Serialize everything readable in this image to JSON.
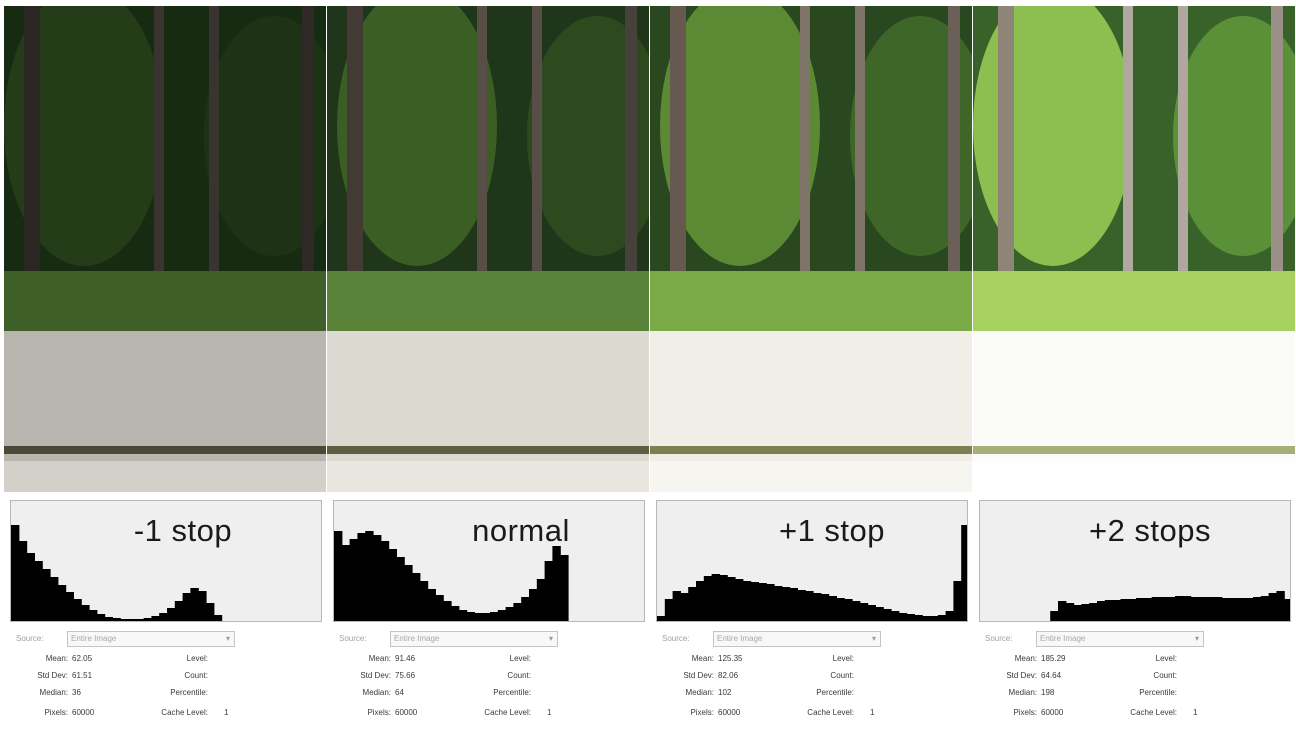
{
  "source_label": "Source:",
  "source_value": "Entire Image",
  "stat_labels": {
    "mean": "Mean:",
    "std_dev": "Std Dev:",
    "median": "Median:",
    "pixels": "Pixels:",
    "level": "Level:",
    "count": "Count:",
    "percentile": "Percentile:",
    "cache_level": "Cache Level:"
  },
  "panels": [
    {
      "label": "-1 stop",
      "stats": {
        "mean": "62.05",
        "std_dev": "61.51",
        "median": "36",
        "pixels": "60000",
        "cache_level": "1"
      },
      "histogram": [
        96,
        80,
        68,
        60,
        52,
        44,
        36,
        29,
        22,
        16,
        11,
        7,
        4,
        3,
        2,
        2,
        2,
        3,
        5,
        8,
        13,
        20,
        28,
        33,
        30,
        18,
        6,
        0,
        0,
        0,
        0,
        0,
        0,
        0,
        0,
        0,
        0,
        0,
        0,
        0
      ]
    },
    {
      "label": "normal",
      "stats": {
        "mean": "91.46",
        "std_dev": "75.66",
        "median": "64",
        "pixels": "60000",
        "cache_level": "1"
      },
      "histogram": [
        90,
        76,
        82,
        88,
        90,
        86,
        80,
        72,
        64,
        56,
        48,
        40,
        32,
        26,
        20,
        15,
        11,
        9,
        8,
        8,
        9,
        11,
        14,
        18,
        24,
        32,
        42,
        60,
        75,
        66,
        0,
        0,
        0,
        0,
        0,
        0,
        0,
        0,
        0,
        0
      ]
    },
    {
      "label": "+1 stop",
      "stats": {
        "mean": "125.35",
        "std_dev": "82.06",
        "median": "102",
        "pixels": "60000",
        "cache_level": "1"
      },
      "histogram": [
        5,
        22,
        30,
        28,
        34,
        40,
        45,
        47,
        46,
        44,
        42,
        40,
        39,
        38,
        37,
        35,
        34,
        33,
        31,
        30,
        28,
        27,
        25,
        23,
        22,
        20,
        18,
        16,
        14,
        12,
        10,
        8,
        7,
        6,
        5,
        5,
        6,
        10,
        40,
        96
      ]
    },
    {
      "label": "+2 stops",
      "stats": {
        "mean": "185.29",
        "std_dev": "64.64",
        "median": "198",
        "pixels": "60000",
        "cache_level": "1"
      },
      "histogram": [
        0,
        0,
        0,
        0,
        0,
        0,
        0,
        0,
        0,
        10,
        20,
        18,
        16,
        17,
        18,
        20,
        21,
        21,
        22,
        22,
        23,
        23,
        24,
        24,
        24,
        25,
        25,
        24,
        24,
        24,
        24,
        23,
        23,
        23,
        23,
        24,
        25,
        28,
        30,
        22
      ]
    }
  ],
  "colors": {
    "foliage_dark": "#14200f",
    "foliage_mid": "#2c4a1c",
    "trunk": "#3a3530",
    "water": "#dcdcd2",
    "hist_bg": "#efefef",
    "hist_fill": "#000000"
  }
}
